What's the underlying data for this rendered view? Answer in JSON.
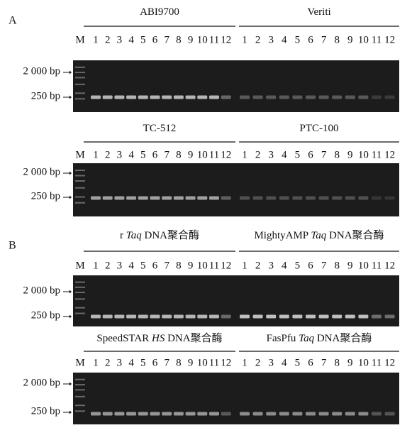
{
  "panels": [
    "A",
    "B"
  ],
  "gels": [
    {
      "titles": [
        [
          {
            "text": "ABI9700"
          }
        ],
        [
          {
            "text": "Veriti"
          }
        ]
      ],
      "lanes_left": [
        "M",
        "1",
        "2",
        "3",
        "4",
        "5",
        "6",
        "7",
        "8",
        "9",
        "10",
        "11",
        "12"
      ],
      "lanes_right": [
        "1",
        "2",
        "3",
        "4",
        "5",
        "6",
        "7",
        "8",
        "9",
        "10",
        "11",
        "12"
      ],
      "markers": [
        "2 000 bp",
        "250 bp"
      ]
    },
    {
      "titles": [
        [
          {
            "text": "TC-512"
          }
        ],
        [
          {
            "text": "PTC-100"
          }
        ]
      ],
      "lanes_left": [
        "M",
        "1",
        "2",
        "3",
        "4",
        "5",
        "6",
        "7",
        "8",
        "9",
        "10",
        "11",
        "12"
      ],
      "lanes_right": [
        "1",
        "2",
        "3",
        "4",
        "5",
        "6",
        "7",
        "8",
        "9",
        "10",
        "11",
        "12"
      ],
      "markers": [
        "2 000 bp",
        "250 bp"
      ]
    },
    {
      "titles": [
        [
          {
            "text": "r "
          },
          {
            "text": "Taq",
            "italic": true
          },
          {
            "text": " DNA聚合酶"
          }
        ],
        [
          {
            "text": "MightyAMP "
          },
          {
            "text": "Taq",
            "italic": true
          },
          {
            "text": " DNA聚合酶"
          }
        ]
      ],
      "lanes_left": [
        "M",
        "1",
        "2",
        "3",
        "4",
        "5",
        "6",
        "7",
        "8",
        "9",
        "10",
        "11",
        "12"
      ],
      "lanes_right": [
        "1",
        "2",
        "3",
        "4",
        "5",
        "6",
        "7",
        "8",
        "9",
        "10",
        "11",
        "12"
      ],
      "markers": [
        "2 000 bp",
        "250 bp"
      ]
    },
    {
      "titles": [
        [
          {
            "text": "SpeedSTAR "
          },
          {
            "text": "HS",
            "italic": true
          },
          {
            "text": " DNA聚合酶"
          }
        ],
        [
          {
            "text": "FasPfu "
          },
          {
            "text": "Taq",
            "italic": true
          },
          {
            "text": " DNA聚合酶"
          }
        ]
      ],
      "lanes_left": [
        "M",
        "1",
        "2",
        "3",
        "4",
        "5",
        "6",
        "7",
        "8",
        "9",
        "10",
        "11",
        "12"
      ],
      "lanes_right": [
        "1",
        "2",
        "3",
        "4",
        "5",
        "6",
        "7",
        "8",
        "9",
        "10",
        "11",
        "12"
      ],
      "markers": [
        "2 000 bp",
        "250 bp"
      ]
    }
  ]
}
